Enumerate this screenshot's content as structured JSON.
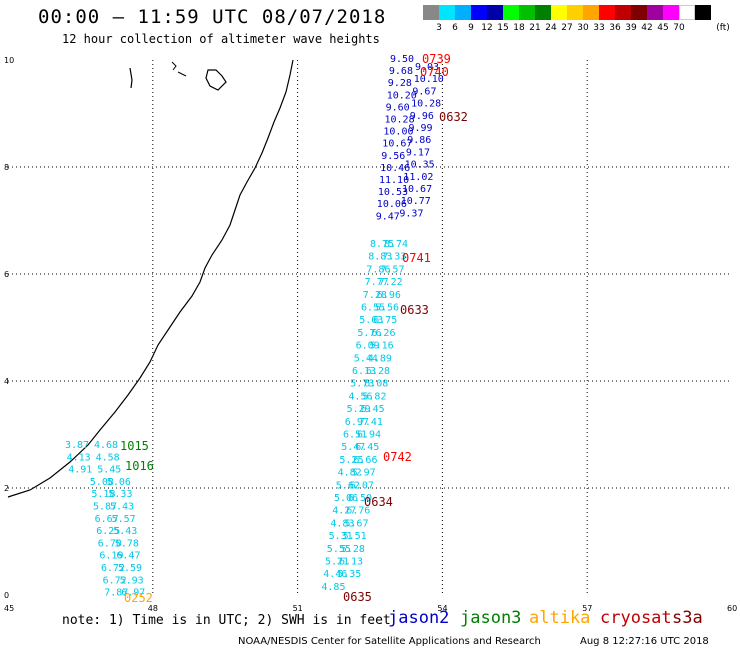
{
  "header": {
    "title": "00:00 – 11:59 UTC 08/07/2018",
    "subtitle": "12 hour collection of altimeter wave heights"
  },
  "scale": {
    "unit": "(ft)",
    "colors": [
      "#888888",
      "#00e5ff",
      "#00b0ff",
      "#0000ff",
      "#0000a8",
      "#00ff00",
      "#00c000",
      "#008000",
      "#ffff00",
      "#ffd000",
      "#ffa500",
      "#ff0000",
      "#c00000",
      "#800000",
      "#a000a0",
      "#ff00ff",
      "#ffffff",
      "#000000"
    ],
    "labels": [
      "3",
      "6",
      "9",
      "12",
      "15",
      "18",
      "21",
      "24",
      "27",
      "30",
      "33",
      "36",
      "39",
      "42",
      "45",
      "70"
    ]
  },
  "map": {
    "x_ticks": [
      "45",
      "48",
      "51",
      "54",
      "57",
      "60"
    ],
    "y_ticks": [
      "0",
      "2",
      "4",
      "6",
      "8",
      "10"
    ],
    "grid": "dotted"
  },
  "observations": {
    "jason2": [
      {
        "t": "9.50"
      },
      {
        "t": "9.68"
      },
      {
        "t": "9.28"
      },
      {
        "t": "10.20"
      },
      {
        "t": "9.60"
      },
      {
        "t": "10.28"
      },
      {
        "t": "10.00"
      },
      {
        "t": "10.67"
      },
      {
        "t": "9.56"
      },
      {
        "t": "10.46"
      },
      {
        "t": "11.10"
      },
      {
        "t": "10.53"
      },
      {
        "t": "10.06"
      },
      {
        "t": "9.47"
      },
      {
        "t": "9.03"
      },
      {
        "t": "10.10"
      },
      {
        "t": "9.67"
      },
      {
        "t": "10.28"
      },
      {
        "t": "9.96"
      },
      {
        "t": "9.99"
      },
      {
        "t": "9.86"
      },
      {
        "t": "9.17"
      },
      {
        "t": "10.35"
      },
      {
        "t": "11.02"
      },
      {
        "t": "10.67"
      },
      {
        "t": "10.77"
      },
      {
        "t": "9.37"
      }
    ],
    "jason2_ids": [
      "0739",
      "0740"
    ],
    "cyan_right": [
      {
        "t": "8.75"
      },
      {
        "t": "8.74"
      },
      {
        "t": "8.83"
      },
      {
        "t": "7.33"
      },
      {
        "t": "7.86"
      },
      {
        "t": "7.57"
      },
      {
        "t": "7.77"
      },
      {
        "t": "7.22"
      },
      {
        "t": "7.28"
      },
      {
        "t": "6.96"
      },
      {
        "t": "6.55"
      },
      {
        "t": "5.56"
      },
      {
        "t": "5.63"
      },
      {
        "t": "6.75"
      },
      {
        "t": "5.76"
      },
      {
        "t": "6.26"
      },
      {
        "t": "6.09"
      },
      {
        "t": "5.16"
      },
      {
        "t": "5.44"
      },
      {
        "t": "4.89"
      },
      {
        "t": "6.13"
      },
      {
        "t": "6.28"
      },
      {
        "t": "5.73"
      },
      {
        "t": "6.08"
      },
      {
        "t": "4.56"
      },
      {
        "t": "5.82"
      },
      {
        "t": "5.29"
      },
      {
        "t": "6.45"
      },
      {
        "t": "6.97"
      },
      {
        "t": "7.41"
      },
      {
        "t": "6.51"
      },
      {
        "t": "6.94"
      },
      {
        "t": "5.47"
      },
      {
        "t": "6.45"
      },
      {
        "t": "5.25"
      },
      {
        "t": "6.66"
      },
      {
        "t": "4.82"
      },
      {
        "t": "5.97"
      },
      {
        "t": "5.62"
      },
      {
        "t": "6.07"
      },
      {
        "t": "5.06"
      },
      {
        "t": "6.50"
      },
      {
        "t": "4.27"
      },
      {
        "t": "6.76"
      },
      {
        "t": "4.83"
      },
      {
        "t": "5.67"
      },
      {
        "t": "5.31"
      },
      {
        "t": "5.51"
      },
      {
        "t": "5.55"
      },
      {
        "t": "5.28"
      },
      {
        "t": "5.21"
      },
      {
        "t": "6.13"
      },
      {
        "t": "4.46"
      },
      {
        "t": "5.35"
      },
      {
        "t": "4.85"
      }
    ],
    "cyan_left": [
      {
        "t": "3.87"
      },
      {
        "t": "4.68"
      },
      {
        "t": "4.13"
      },
      {
        "t": "4.58"
      },
      {
        "t": "4.91"
      },
      {
        "t": "5.45"
      },
      {
        "t": "5.08"
      },
      {
        "t": "5.06"
      },
      {
        "t": "5.18"
      },
      {
        "t": "5.33"
      },
      {
        "t": "5.87"
      },
      {
        "t": "5.43"
      },
      {
        "t": "6.67"
      },
      {
        "t": "5.57"
      },
      {
        "t": "6.25"
      },
      {
        "t": "5.43"
      },
      {
        "t": "6.70"
      },
      {
        "t": "5.78"
      },
      {
        "t": "6.19"
      },
      {
        "t": "6.47"
      },
      {
        "t": "6.72"
      },
      {
        "t": "5.59"
      },
      {
        "t": "6.72"
      },
      {
        "t": "5.93"
      },
      {
        "t": "7.87"
      },
      {
        "t": "6.97"
      }
    ],
    "jason3_ids": [
      "1015",
      "1016"
    ],
    "altika_ids": [
      "0252"
    ],
    "s3a_ids": [
      "0739",
      "0740",
      "0741",
      "0742"
    ],
    "cryosat_ids": [
      "0632",
      "0633",
      "0634",
      "0635"
    ]
  },
  "note": "note: 1) Time is in UTC; 2) SWH is in feet",
  "legend": [
    {
      "name": "jason2",
      "color": "#0000c8"
    },
    {
      "name": "jason3",
      "color": "#008000"
    },
    {
      "name": "altika",
      "color": "#ffa500"
    },
    {
      "name": "cryosat",
      "color": "#c00000"
    },
    {
      "name": "s3a",
      "color": "#800000"
    }
  ],
  "footer": "NOAA/NESDIS Center for Satellite Applications and Research",
  "footer_time": "Aug  8 12:27:16 UTC 2018"
}
